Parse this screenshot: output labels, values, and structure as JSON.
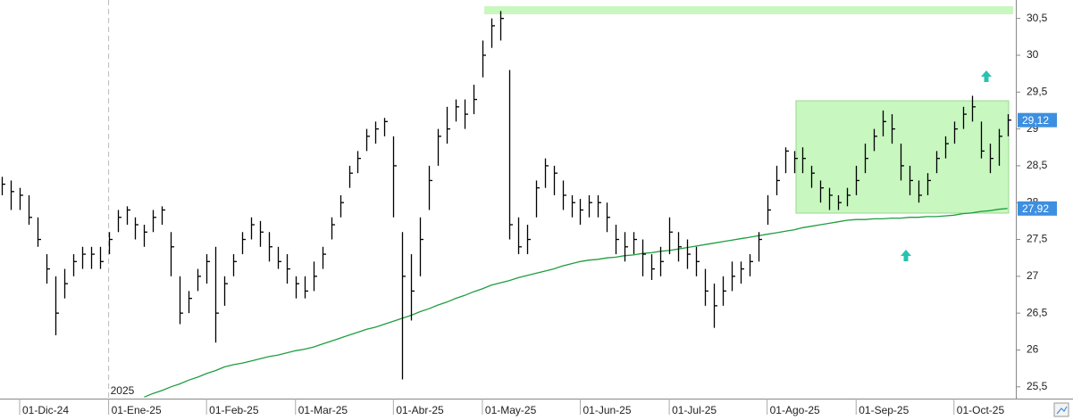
{
  "chart_data": {
    "type": "ohlc",
    "categories": [
      null,
      null,
      "01-Dic-24",
      null,
      null,
      null,
      null,
      null,
      null,
      null,
      null,
      null,
      "01-Ene-25",
      null,
      null,
      null,
      null,
      null,
      null,
      null,
      null,
      null,
      null,
      "01-Feb-25",
      null,
      null,
      null,
      null,
      null,
      null,
      null,
      null,
      null,
      "01-Mar-25",
      null,
      null,
      null,
      null,
      null,
      null,
      null,
      null,
      null,
      null,
      "01-Abr-25",
      null,
      null,
      null,
      null,
      null,
      null,
      null,
      null,
      null,
      "01-May-25",
      null,
      null,
      null,
      null,
      null,
      null,
      null,
      null,
      null,
      null,
      "01-Jun-25",
      null,
      null,
      null,
      null,
      null,
      null,
      null,
      null,
      null,
      "01-Jul-25",
      null,
      null,
      null,
      null,
      null,
      null,
      null,
      null,
      null,
      null,
      "01-Ago-25",
      null,
      null,
      null,
      null,
      null,
      null,
      null,
      null,
      null,
      "01-Sep-25",
      null,
      null,
      null,
      null,
      null,
      null,
      null,
      null,
      null,
      null,
      "01-Oct-25",
      null,
      null,
      null,
      null,
      null,
      null
    ],
    "year_label": "2025",
    "year_start_index": 12,
    "ohlc": {
      "color": "#000000",
      "high": [
        28.35,
        28.3,
        28.2,
        28.1,
        27.8,
        27.3,
        27.0,
        27.1,
        27.3,
        27.4,
        27.4,
        27.4,
        27.6,
        27.9,
        27.95,
        27.8,
        27.7,
        27.9,
        27.95,
        27.6,
        27.0,
        26.8,
        27.1,
        27.3,
        27.4,
        27.0,
        27.3,
        27.6,
        27.8,
        27.75,
        27.6,
        27.4,
        27.3,
        27.0,
        27.0,
        27.2,
        27.4,
        27.8,
        28.1,
        28.5,
        28.7,
        29.0,
        29.1,
        29.15,
        28.9,
        27.6,
        27.3,
        27.8,
        28.5,
        29.0,
        29.3,
        29.4,
        29.4,
        29.6,
        30.2,
        30.5,
        30.6,
        29.8,
        27.8,
        27.7,
        28.3,
        28.6,
        28.5,
        28.3,
        28.1,
        28.05,
        28.1,
        28.1,
        28.0,
        27.7,
        27.6,
        27.6,
        27.5,
        27.3,
        27.4,
        27.8,
        27.6,
        27.5,
        27.4,
        27.1,
        26.9,
        27.0,
        27.2,
        27.2,
        27.3,
        27.6,
        28.1,
        28.5,
        28.75,
        28.7,
        28.75,
        28.5,
        28.3,
        28.2,
        28.1,
        28.2,
        28.5,
        28.8,
        29.0,
        29.25,
        29.2,
        28.8,
        28.5,
        28.3,
        28.4,
        28.7,
        28.9,
        29.1,
        29.3,
        29.45,
        29.1,
        28.8,
        29.0,
        29.2
      ],
      "low": [
        28.1,
        27.9,
        27.9,
        27.7,
        27.4,
        26.9,
        26.2,
        26.7,
        27.0,
        27.1,
        27.1,
        27.1,
        27.3,
        27.6,
        27.7,
        27.5,
        27.4,
        27.6,
        27.7,
        27.0,
        26.35,
        26.5,
        26.8,
        26.9,
        26.1,
        26.6,
        27.0,
        27.3,
        27.5,
        27.4,
        27.2,
        27.1,
        26.9,
        26.7,
        26.7,
        26.8,
        27.1,
        27.5,
        27.8,
        28.2,
        28.4,
        28.7,
        28.8,
        28.9,
        27.8,
        25.6,
        26.4,
        27.0,
        27.9,
        28.5,
        28.8,
        29.1,
        29.0,
        29.2,
        29.7,
        30.1,
        30.2,
        27.5,
        27.3,
        27.3,
        27.8,
        28.2,
        28.1,
        27.9,
        27.8,
        27.7,
        27.8,
        27.8,
        27.6,
        27.3,
        27.2,
        27.3,
        27.0,
        26.95,
        27.0,
        27.3,
        27.2,
        27.1,
        27.0,
        26.6,
        26.3,
        26.6,
        26.8,
        26.9,
        27.0,
        27.2,
        27.7,
        28.1,
        28.4,
        28.4,
        28.4,
        28.2,
        28.0,
        27.9,
        27.9,
        27.95,
        28.1,
        28.4,
        28.7,
        28.9,
        28.8,
        28.3,
        28.1,
        28.0,
        28.1,
        28.4,
        28.6,
        28.8,
        29.0,
        29.1,
        28.6,
        28.4,
        28.5,
        28.9
      ],
      "close": [
        28.25,
        28.15,
        28.1,
        27.8,
        27.5,
        27.1,
        26.5,
        26.9,
        27.2,
        27.3,
        27.3,
        27.2,
        27.5,
        27.8,
        27.9,
        27.7,
        27.6,
        27.8,
        27.9,
        27.4,
        26.5,
        26.7,
        27.0,
        27.2,
        26.5,
        26.9,
        27.2,
        27.5,
        27.7,
        27.6,
        27.4,
        27.2,
        27.1,
        26.9,
        26.8,
        27.0,
        27.3,
        27.7,
        28.0,
        28.4,
        28.6,
        28.9,
        29.0,
        29.1,
        28.5,
        27.0,
        26.8,
        27.5,
        28.3,
        28.9,
        29.0,
        29.3,
        29.2,
        29.4,
        30.0,
        30.4,
        30.5,
        27.7,
        27.4,
        27.5,
        28.2,
        28.5,
        28.4,
        28.1,
        28.0,
        27.9,
        28.0,
        28.0,
        27.8,
        27.5,
        27.4,
        27.5,
        27.3,
        27.1,
        27.2,
        27.6,
        27.4,
        27.3,
        27.2,
        26.8,
        26.6,
        26.8,
        27.0,
        27.1,
        27.2,
        27.5,
        27.9,
        28.3,
        28.7,
        28.6,
        28.6,
        28.4,
        28.2,
        28.1,
        28.0,
        28.1,
        28.3,
        28.6,
        28.9,
        29.1,
        29.0,
        28.5,
        28.3,
        28.1,
        28.3,
        28.6,
        28.8,
        29.0,
        29.2,
        29.3,
        28.7,
        28.6,
        28.9,
        29.12
      ],
      "last_label": "29,12"
    },
    "ma": {
      "color": "#1e9e3e",
      "values": [
        null,
        null,
        null,
        null,
        null,
        null,
        null,
        null,
        null,
        null,
        null,
        null,
        null,
        null,
        null,
        null,
        25.36,
        25.41,
        25.45,
        25.5,
        25.54,
        25.59,
        25.63,
        25.68,
        25.72,
        25.77,
        25.8,
        25.82,
        25.85,
        25.88,
        25.91,
        25.93,
        25.96,
        25.99,
        26.01,
        26.04,
        26.08,
        26.12,
        26.16,
        26.2,
        26.24,
        26.28,
        26.31,
        26.35,
        26.39,
        26.43,
        26.47,
        26.52,
        26.56,
        26.61,
        26.65,
        26.7,
        26.74,
        26.79,
        26.83,
        26.88,
        26.91,
        26.94,
        26.98,
        27.01,
        27.04,
        27.07,
        27.1,
        27.14,
        27.17,
        27.2,
        27.22,
        27.23,
        27.25,
        27.26,
        27.28,
        27.29,
        27.31,
        27.32,
        27.34,
        27.35,
        27.37,
        27.39,
        27.41,
        27.43,
        27.45,
        27.47,
        27.49,
        27.51,
        27.53,
        27.55,
        27.57,
        27.59,
        27.61,
        27.63,
        27.66,
        27.68,
        27.7,
        27.72,
        27.74,
        27.76,
        27.77,
        27.77,
        27.78,
        27.78,
        27.79,
        27.79,
        27.8,
        27.8,
        27.81,
        27.81,
        27.82,
        27.83,
        27.85,
        27.86,
        27.88,
        27.89,
        27.91,
        27.92
      ],
      "last_label": "27,92"
    },
    "ylim": [
      25.34,
      30.75
    ],
    "yticks": [
      {
        "value": 25.5,
        "label": "25,5"
      },
      26,
      {
        "value": 26.5,
        "label": "26,5"
      },
      27,
      {
        "value": 27.5,
        "label": "27,5"
      },
      28,
      {
        "value": 28.5,
        "label": "28,5"
      },
      29,
      {
        "value": 29.5,
        "label": "29,5"
      },
      30,
      {
        "value": 30.5,
        "label": "30,5"
      }
    ],
    "label_color": "#3d8fe0"
  }
}
